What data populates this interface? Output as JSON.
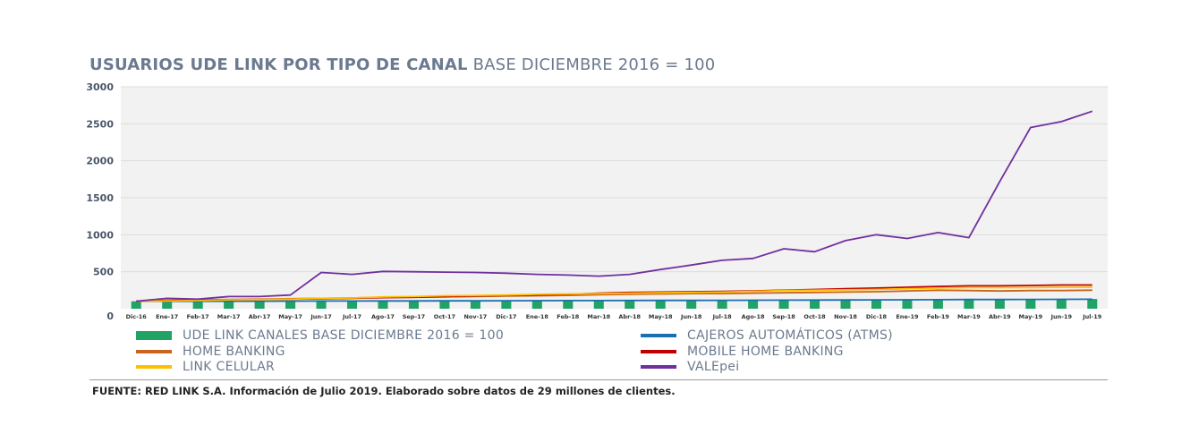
{
  "title": {
    "main": "USUARIOS UDE LINK POR TIPO DE CANAL",
    "sub": "BASE DICIEMBRE 2016 = 100"
  },
  "source": "FUENTE: RED LINK S.A. Información de Julio 2019. Elaborado sobre datos de 29 millones de clientes.",
  "colors": {
    "bars": "#21a366",
    "atms": "#1a6fb0",
    "home_banking": "#c8641f",
    "mobile_home_banking": "#c00000",
    "link_celular": "#ffc000",
    "valepei": "#7030a0",
    "plot_bg": "#f2f2f2",
    "grid": "#dcdcdc"
  },
  "chart_data": {
    "type": "bar",
    "title": "USUARIOS UDE LINK POR TIPO DE CANAL BASE DICIEMBRE 2016 = 100",
    "xlabel": "",
    "ylabel": "",
    "ylim": [
      0,
      3000
    ],
    "yticks": [
      0,
      500,
      1000,
      1500,
      2000,
      2500,
      3000
    ],
    "grid": true,
    "legend_position": "bottom",
    "categories": [
      "Dic-16",
      "Ene-17",
      "Feb-17",
      "Mar-17",
      "Abr-17",
      "May-17",
      "Jun-17",
      "Jul-17",
      "Ago-17",
      "Sep-17",
      "Oct-17",
      "Nov-17",
      "Dic-17",
      "Ene-18",
      "Feb-18",
      "Mar-18",
      "Abr-18",
      "May-18",
      "Jun-18",
      "Jul-18",
      "Ago-18",
      "Sep-18",
      "Oct-18",
      "Nov-18",
      "Dic-18",
      "Ene-19",
      "Feb-19",
      "Mar-19",
      "Abr-19",
      "May-19",
      "Jun-19",
      "Jul-19"
    ],
    "series": [
      {
        "name": "UDE LINK CANALES BASE DICIEMBRE 2016 = 100",
        "type": "bar",
        "color_key": "bars",
        "values": [
          100,
          101,
          102,
          103,
          104,
          105,
          106,
          107,
          108,
          109,
          110,
          111,
          112,
          113,
          115,
          116,
          117,
          118,
          119,
          120,
          121,
          122,
          123,
          124,
          125,
          126,
          127,
          128,
          129,
          130,
          131,
          132
        ]
      },
      {
        "name": "CAJEROS AUTOMÁTICOS (ATMS)",
        "type": "line",
        "color_key": "atms",
        "values": [
          100,
          101,
          101,
          102,
          102,
          103,
          104,
          104,
          105,
          105,
          106,
          107,
          108,
          109,
          110,
          110,
          111,
          112,
          113,
          114,
          115,
          116,
          117,
          118,
          120,
          121,
          122,
          124,
          125,
          126,
          127,
          128
        ]
      },
      {
        "name": "HOME BANKING",
        "type": "line",
        "color_key": "home_banking",
        "values": [
          100,
          115,
          120,
          125,
          130,
          135,
          140,
          145,
          155,
          155,
          160,
          165,
          170,
          175,
          180,
          190,
          195,
          200,
          205,
          205,
          210,
          215,
          220,
          225,
          230,
          240,
          250,
          245,
          240,
          245,
          245,
          250
        ]
      },
      {
        "name": "MOBILE HOME BANKING",
        "type": "line",
        "color_key": "mobile_home_banking",
        "values": [
          100,
          110,
          115,
          120,
          125,
          130,
          135,
          140,
          150,
          155,
          165,
          175,
          180,
          185,
          195,
          210,
          220,
          225,
          230,
          235,
          240,
          250,
          260,
          270,
          280,
          290,
          300,
          310,
          310,
          315,
          320,
          320
        ]
      },
      {
        "name": "LINK CELULAR",
        "type": "line",
        "color_key": "link_celular",
        "values": [
          100,
          105,
          110,
          120,
          125,
          130,
          140,
          145,
          160,
          165,
          175,
          180,
          185,
          195,
          200,
          205,
          210,
          215,
          220,
          225,
          235,
          245,
          250,
          255,
          260,
          270,
          280,
          285,
          285,
          285,
          290,
          290
        ]
      },
      {
        "name": "VALEpei",
        "type": "line",
        "color_key": "valepei",
        "values": [
          100,
          140,
          130,
          165,
          165,
          185,
          490,
          465,
          505,
          500,
          495,
          490,
          480,
          465,
          455,
          440,
          465,
          530,
          590,
          655,
          680,
          810,
          770,
          920,
          1000,
          950,
          1030,
          960,
          1720,
          2450,
          2530,
          2670
        ]
      }
    ]
  }
}
